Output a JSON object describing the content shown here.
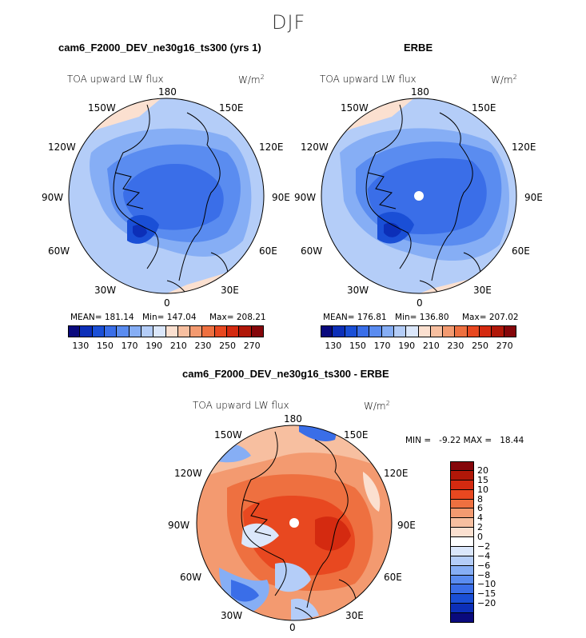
{
  "figure": {
    "season": "DJF",
    "panel_left_title": "cam6_F2000_DEV_ne30g16_ts300 (yrs 1)",
    "panel_right_title": "ERBE",
    "panel_diff_title": "cam6_F2000_DEV_ne30g16_ts300 - ERBE",
    "variable": "TOA upward LW flux",
    "units": "W/m",
    "units_exp": "2"
  },
  "longitude_labels": {
    "top": "180",
    "top_left": "150W",
    "top_right": "150E",
    "left_upper": "120W",
    "right_upper": "120E",
    "left": "90W",
    "right": "90E",
    "left_lower": "60W",
    "right_lower": "60E",
    "bottom_left": "30W",
    "bottom_right": "30E",
    "bottom": "0"
  },
  "panel_left": {
    "mean": "MEAN= 181.14",
    "min": "Min= 147.04",
    "max": "Max= 208.21"
  },
  "panel_right": {
    "mean": "MEAN= 176.81",
    "min": "Min= 136.80",
    "max": "Max= 207.02"
  },
  "panel_diff": {
    "minmax": "MIN =   -9.22 MAX =   18.44"
  },
  "colorbar_main": {
    "colors": [
      "#0a0a7d",
      "#0c2fb8",
      "#1a4fd6",
      "#3a6ee8",
      "#5a8cf0",
      "#86aef5",
      "#b4cdf8",
      "#dbe7fb",
      "#fbe0d0",
      "#f7bfa0",
      "#f39a70",
      "#ee7040",
      "#e84820",
      "#d42a10",
      "#b01708",
      "#85060a"
    ],
    "tick_labels": [
      "130",
      "150",
      "170",
      "190",
      "210",
      "230",
      "250",
      "270"
    ]
  },
  "colorbar_diff": {
    "colors": [
      "#85060a",
      "#b01708",
      "#d42a10",
      "#e84820",
      "#ee7040",
      "#f39a70",
      "#f7bfa0",
      "#fbe0d0",
      "#ffffff",
      "#dbe7fb",
      "#b4cdf8",
      "#86aef5",
      "#5a8cf0",
      "#3a6ee8",
      "#1a4fd6",
      "#0c2fb8",
      "#0a0a7d"
    ],
    "tick_labels": [
      "20",
      "15",
      "10",
      "8",
      "6",
      "4",
      "2",
      "0",
      "−2",
      "−4",
      "−6",
      "−8",
      "−10",
      "−15",
      "−20"
    ]
  },
  "chart_data": [
    {
      "type": "map",
      "title": "cam6_F2000_DEV_ne30g16_ts300 (yrs 1)",
      "projection": "north polar stereographic",
      "variable": "TOA upward LW flux",
      "units": "W/m2",
      "mean": 181.14,
      "min": 147.04,
      "max": 208.21,
      "colorbar_range": [
        130,
        270
      ]
    },
    {
      "type": "map",
      "title": "ERBE",
      "projection": "north polar stereographic",
      "variable": "TOA upward LW flux",
      "units": "W/m2",
      "mean": 176.81,
      "min": 136.8,
      "max": 207.02,
      "colorbar_range": [
        130,
        270
      ]
    },
    {
      "type": "map",
      "title": "cam6_F2000_DEV_ne30g16_ts300 - ERBE",
      "projection": "north polar stereographic",
      "variable": "TOA upward LW flux",
      "units": "W/m2",
      "min": -9.22,
      "max": 18.44,
      "colorbar_levels": [
        -20,
        -15,
        -10,
        -8,
        -6,
        -4,
        -2,
        0,
        2,
        4,
        6,
        8,
        10,
        15,
        20
      ]
    }
  ]
}
